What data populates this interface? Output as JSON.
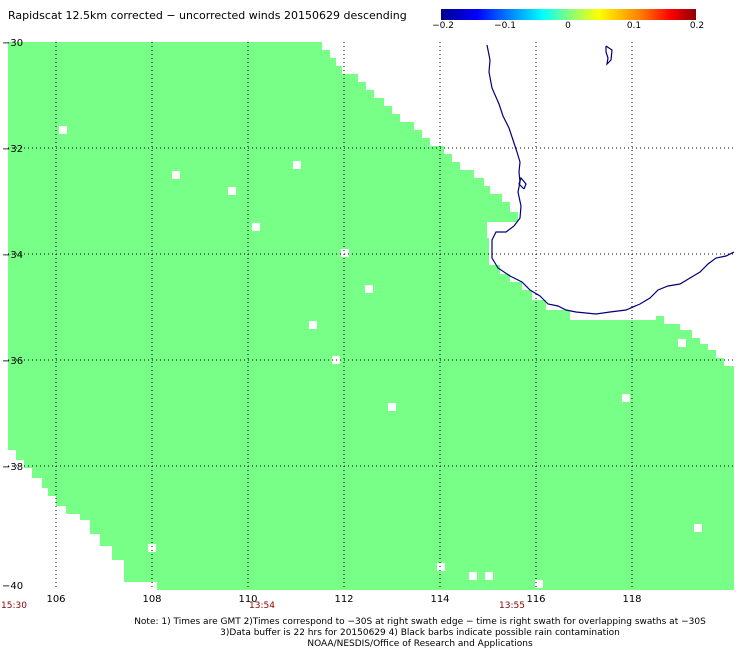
{
  "title": "Rapidscat 12.5km corrected − uncorrected winds 20150629 descending",
  "colorbar": {
    "ticks": [
      "−0.2",
      "−0.1",
      "0",
      "0.1",
      "0.2"
    ],
    "range": [
      -0.2,
      0.2
    ]
  },
  "map": {
    "lon_range": [
      104.5,
      120
    ],
    "lat_range": [
      -40,
      -30
    ],
    "lon_labels": [
      "106",
      "108",
      "110",
      "112",
      "114",
      "116",
      "118"
    ],
    "lat_labels": [
      "−30",
      "−32",
      "−34",
      "−36",
      "−38",
      "−40"
    ],
    "swath_color": "#77ff88",
    "coast_color": "#00007a"
  },
  "times": [
    "15:30",
    "13:54",
    "13:55"
  ],
  "notes": [
    "Note: 1) Times are GMT 2)Times correspond to −30S at right swath edge − time is right swath for overlapping swaths at −30S",
    "3)Data buffer is 22 hrs for 20150629 4) Black barbs indicate possible rain contamination",
    "NOAA/NESDIS/Office of Research and Applications"
  ]
}
